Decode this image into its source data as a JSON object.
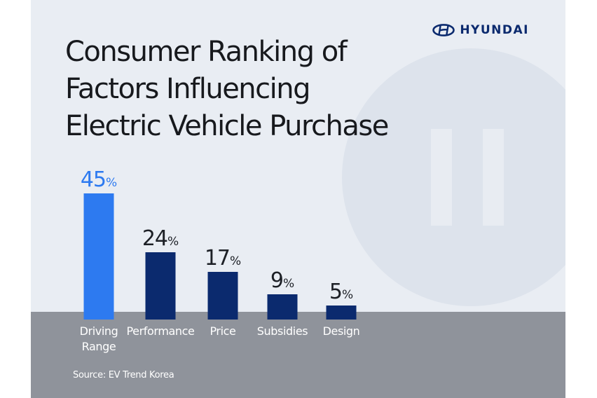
{
  "brand": {
    "name": "HYUNDAI",
    "color": "#0b2a6e"
  },
  "title_lines": [
    "Consumer Ranking of",
    "Factors Influencing",
    "Electric Vehicle Purchase"
  ],
  "source": "Source: EV Trend Korea",
  "colors": {
    "highlight": "#2d7af0",
    "bar": "#0b2a6e",
    "ground": "#8f939b",
    "background": "#e9edf3"
  },
  "chart_data": {
    "type": "bar",
    "title": "Consumer Ranking of Factors Influencing Electric Vehicle Purchase",
    "categories": [
      [
        "Driving",
        "Range"
      ],
      [
        "Performance"
      ],
      [
        "Price"
      ],
      [
        "Subsidies"
      ],
      [
        "Design"
      ]
    ],
    "values": [
      45,
      24,
      17,
      9,
      5
    ],
    "value_suffix": "%",
    "highlight_index": 0,
    "xlabel": "",
    "ylabel": "",
    "ylim": [
      0,
      45
    ],
    "grid": false
  }
}
